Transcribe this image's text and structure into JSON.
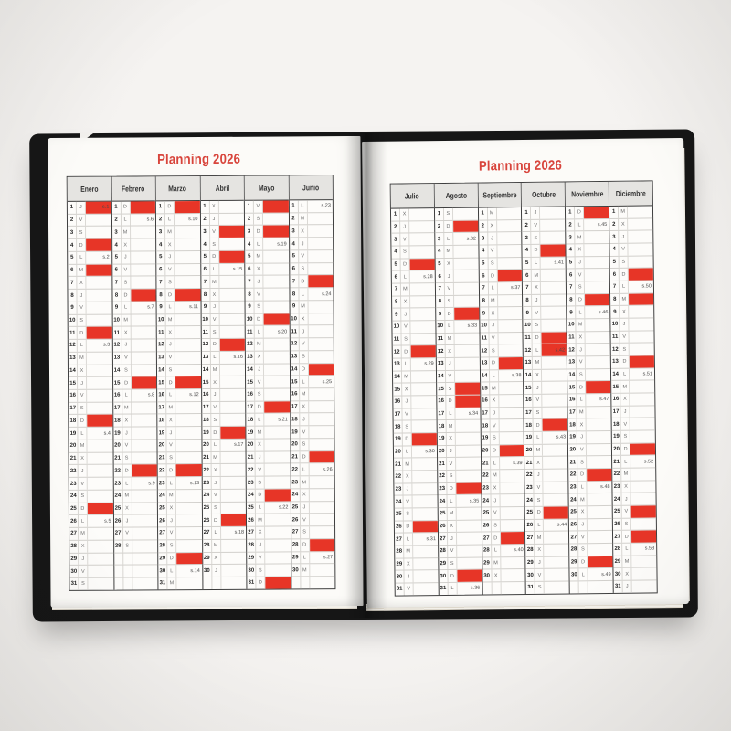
{
  "scene": {
    "background_color": "#f3f1ef",
    "cover_color": "#161616",
    "page_color": "#fcfbf8",
    "highlight_red": "#e73527",
    "title_red": "#d8453c",
    "weekday_letters": "LMXJVSD"
  },
  "left_page": {
    "title": "Planning 2026",
    "months": [
      {
        "name": "Enero",
        "days": 31,
        "letters": "JVSDLMXJVSDLMXJVSDLMXJVSDLMXJVS",
        "red_days": [
          1,
          4,
          6,
          11,
          18,
          25
        ],
        "week_labels": {
          "1": "s.1",
          "5": "s.2",
          "12": "s.3",
          "19": "s.4",
          "26": "s.5"
        }
      },
      {
        "name": "Febrero",
        "days": 28,
        "letters": "DLMXJVSDLMXJVSDLMXJVSDLMXJVS",
        "red_days": [
          1,
          8,
          15,
          22
        ],
        "week_labels": {
          "2": "s.6",
          "9": "s.7",
          "16": "s.8",
          "23": "s.9"
        }
      },
      {
        "name": "Marzo",
        "days": 31,
        "letters": "DLMXJVSDLMXJVSDLMXJVSDLMXJVSDLM",
        "red_days": [
          1,
          8,
          15,
          22,
          29
        ],
        "week_labels": {
          "2": "s.10",
          "9": "s.11",
          "16": "s.12",
          "23": "s.13",
          "30": "s.14"
        }
      },
      {
        "name": "Abril",
        "days": 30,
        "letters": "XJVSDLMXJVSDLMXJVSDLMXJVSDLMXJ",
        "red_days": [
          3,
          5,
          12,
          19,
          26
        ],
        "week_labels": {
          "6": "s.15",
          "13": "s.16",
          "20": "s.17",
          "27": "s.18"
        }
      },
      {
        "name": "Mayo",
        "days": 31,
        "letters": "VSDLMXJVSDLMXJVSDLMXJVSDLMXJVSD",
        "red_days": [
          1,
          3,
          10,
          17,
          24,
          31
        ],
        "week_labels": {
          "4": "s.19",
          "11": "s.20",
          "18": "s.21",
          "25": "s.22"
        }
      },
      {
        "name": "Junio",
        "days": 30,
        "letters": "LMXJVSDLMXJVSDLMXJVSDLMXJVSDLM",
        "red_days": [
          7,
          14,
          21,
          28
        ],
        "week_labels": {
          "1": "s.23",
          "8": "s.24",
          "15": "s.25",
          "22": "s.26",
          "29": "s.27"
        }
      }
    ]
  },
  "right_page": {
    "title": "Planning 2026",
    "months": [
      {
        "name": "Julio",
        "days": 31,
        "letters": "XJVSDLMXJVSDLMXJVSDLMXJVSDLMXJV",
        "red_days": [
          5,
          12,
          19,
          26
        ],
        "week_labels": {
          "6": "s.28",
          "13": "s.29",
          "20": "s.30",
          "27": "s.31"
        }
      },
      {
        "name": "Agosto",
        "days": 31,
        "letters": "SDLMXJVSDLMXJVSDLMXJVSDLMXJVSDL",
        "red_days": [
          2,
          9,
          15,
          16,
          23,
          30
        ],
        "week_labels": {
          "3": "s.32",
          "10": "s.33",
          "17": "s.34",
          "24": "s.35",
          "31": "s.36"
        }
      },
      {
        "name": "Septiembre",
        "days": 30,
        "letters": "MXJVSDLMXJVSDLMXJVSDLMXJVSDLMX",
        "red_days": [
          6,
          13,
          20,
          27
        ],
        "week_labels": {
          "7": "s.37",
          "14": "s.38",
          "21": "s.39",
          "28": "s.40"
        }
      },
      {
        "name": "Octubre",
        "days": 31,
        "letters": "JVSDLMXJVSDLMXJVSDLMXJVSDLMXJVS",
        "red_days": [
          4,
          11,
          12,
          18,
          25
        ],
        "week_labels": {
          "5": "s.41",
          "12": "s.42",
          "19": "s.43",
          "26": "s.44"
        }
      },
      {
        "name": "Noviembre",
        "days": 30,
        "letters": "DLMXJVSDLMXJVSDLMXJVSDLMXJVSDL",
        "red_days": [
          1,
          8,
          15,
          22,
          29
        ],
        "week_labels": {
          "2": "s.45",
          "9": "s.46",
          "16": "s.47",
          "23": "s.48",
          "30": "s.49"
        }
      },
      {
        "name": "Diciembre",
        "days": 31,
        "letters": "MXJVSDLMXJVSDLMXJVSDLMXJVSDLMXJ",
        "red_days": [
          6,
          8,
          13,
          20,
          25,
          27
        ],
        "week_labels": {
          "7": "s.50",
          "14": "s.51",
          "21": "s.52",
          "28": "s.53"
        }
      }
    ]
  }
}
